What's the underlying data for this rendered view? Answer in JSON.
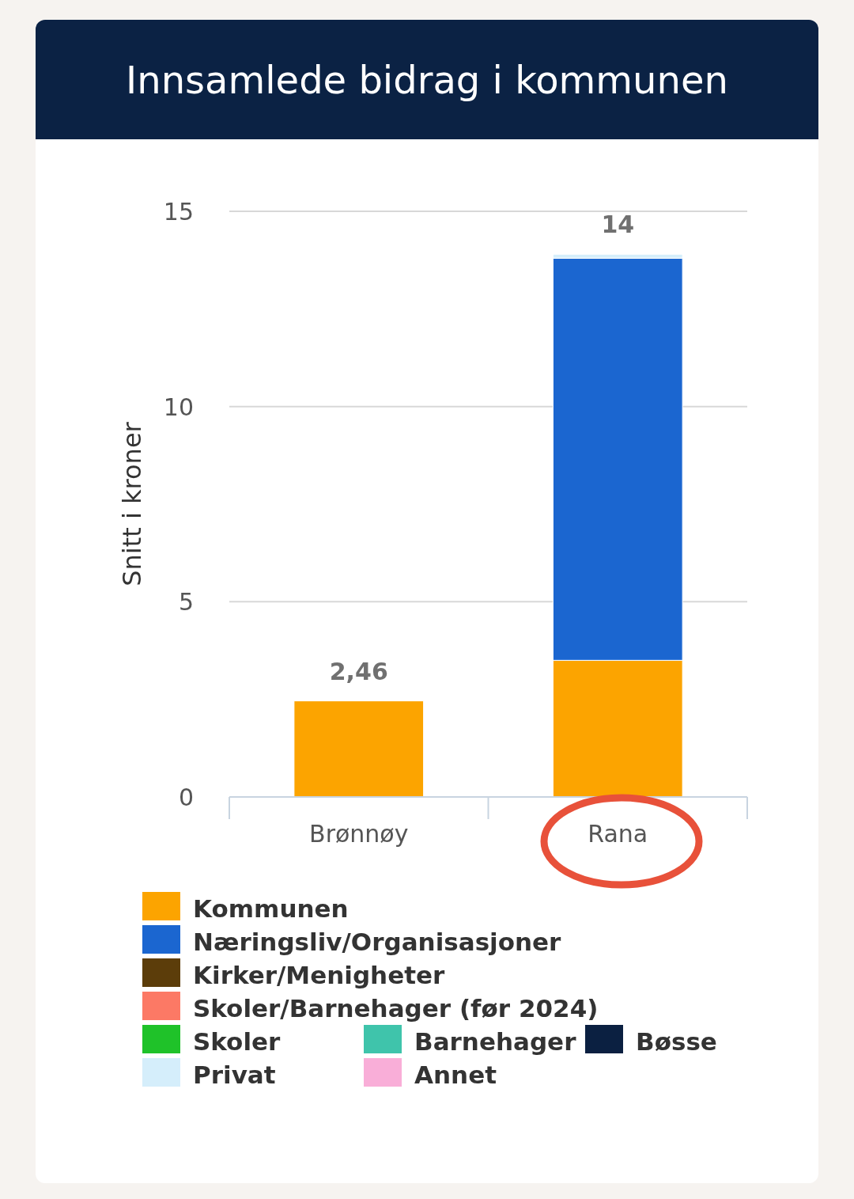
{
  "chart_data": {
    "type": "bar",
    "title": "Innsamlede bidrag i kommunen",
    "ylabel": "Snitt i kroner",
    "categories": [
      "Brønnøy",
      "Rana"
    ],
    "stacked": true,
    "ylim": [
      0,
      15
    ],
    "yticks": [
      0,
      5,
      10,
      15
    ],
    "grid": "y",
    "legend": "bottom",
    "totals": [
      "2,46",
      "14"
    ],
    "series": [
      {
        "name": "Kommunen",
        "color": "#fca400",
        "values": [
          2.46,
          3.5
        ]
      },
      {
        "name": "Næringsliv/Organisasjoner",
        "color": "#1b66d0",
        "values": [
          0,
          10.3
        ]
      },
      {
        "name": "Kirker/Menigheter",
        "color": "#5c3d0a",
        "values": [
          0,
          0
        ]
      },
      {
        "name": "Skoler/Barnehager (før 2024)",
        "color": "#fc7965",
        "values": [
          0,
          0
        ]
      },
      {
        "name": "Skoler",
        "color": "#1fc229",
        "values": [
          0,
          0
        ]
      },
      {
        "name": "Barnehager",
        "color": "#3fc4ab",
        "values": [
          0,
          0
        ]
      },
      {
        "name": "Bøsse",
        "color": "#0b2041",
        "values": [
          0,
          0
        ]
      },
      {
        "name": "Privat",
        "color": "#d5eefb",
        "values": [
          0,
          0.1
        ]
      },
      {
        "name": "Annet",
        "color": "#f9aed8",
        "values": [
          0,
          0
        ]
      }
    ]
  }
}
